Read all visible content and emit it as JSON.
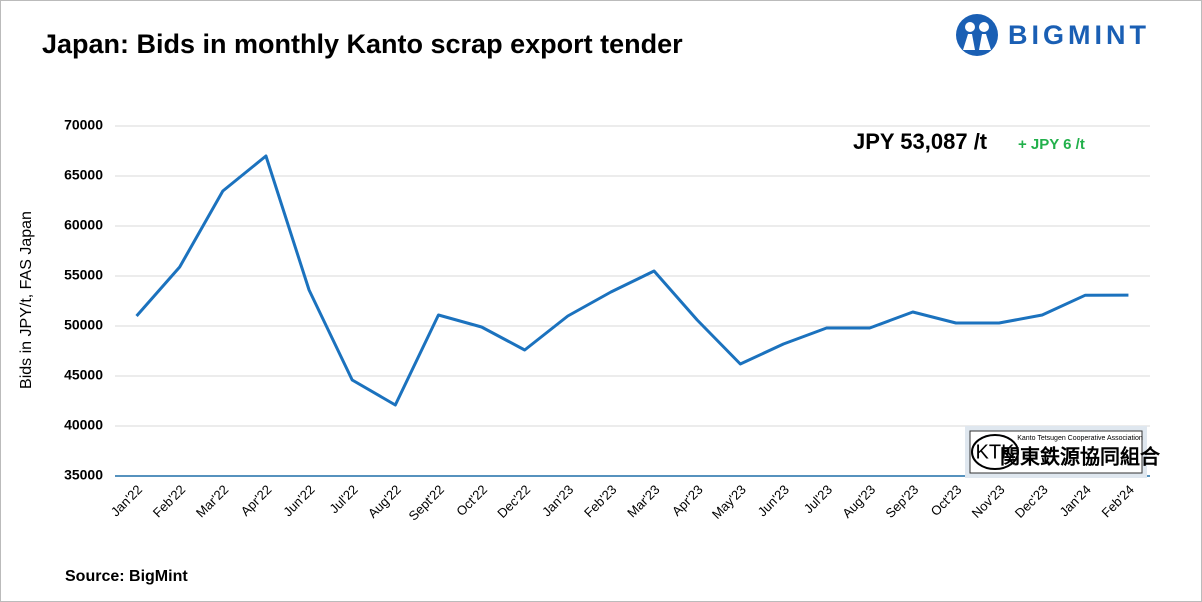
{
  "chart_data": {
    "type": "line",
    "title": "Japan: Bids in monthly Kanto scrap export tender",
    "ylabel": "Bids in JPY/t, FAS Japan",
    "source": "Source: BigMint",
    "annotation": "JPY 53,087 /t",
    "change": "+ JPY 6 /t",
    "categories": [
      "Jan'22",
      "Feb'22",
      "Mar'22",
      "Apr'22",
      "Jun'22",
      "Jul'22",
      "Aug'22",
      "Sept'22",
      "Oct'22",
      "Dec'22",
      "Jan'23",
      "Feb'23",
      "Mar'23",
      "Apr'23",
      "May'23",
      "Jun'23",
      "Jul'23",
      "Aug'23",
      "Sep'23",
      "Oct'23",
      "Nov'23",
      "Dec'23",
      "Jan'24",
      "Feb'24"
    ],
    "values": [
      51000,
      55900,
      63500,
      67000,
      53600,
      44600,
      42100,
      51100,
      49900,
      47600,
      51000,
      53400,
      55500,
      50600,
      46200,
      48200,
      49800,
      49800,
      51400,
      50300,
      50300,
      51100,
      53081,
      53087
    ],
    "color": "#1b72be",
    "ylim": [
      35000,
      70000
    ],
    "yticks": [
      35000,
      40000,
      45000,
      50000,
      55000,
      60000,
      65000,
      70000
    ],
    "grid": true
  },
  "logos": {
    "bigmint": "BIGMINT",
    "ktk": "KTK",
    "ktk_en": "Kanto Tetsugen Cooperative Association",
    "ktk_jp": "関東鉄源協同組合"
  }
}
